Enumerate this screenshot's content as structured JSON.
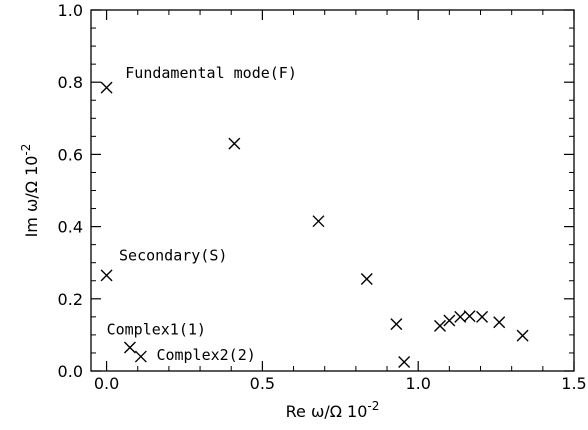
{
  "chart_data": {
    "type": "scatter",
    "xlabel": "Re ω/Ω 10⁻²",
    "ylabel": "Im ω/Ω 10⁻²",
    "xlim": [
      -0.05,
      1.5
    ],
    "ylim": [
      0.0,
      1.0
    ],
    "x_ticks": [
      0.0,
      0.5,
      1.0,
      1.5
    ],
    "x_tick_labels": [
      "0.0",
      "0.5",
      "1.0",
      "1.5"
    ],
    "y_ticks": [
      0.0,
      0.2,
      0.4,
      0.6,
      0.8,
      1.0
    ],
    "y_tick_labels": [
      "0.0",
      "0.2",
      "0.4",
      "0.6",
      "0.8",
      "1.0"
    ],
    "grid": false,
    "marker": "x",
    "color": "#000000",
    "points": [
      {
        "x": 0.0,
        "y": 0.785
      },
      {
        "x": 0.0,
        "y": 0.265
      },
      {
        "x": 0.075,
        "y": 0.065
      },
      {
        "x": 0.11,
        "y": 0.04
      },
      {
        "x": 0.41,
        "y": 0.63
      },
      {
        "x": 0.68,
        "y": 0.415
      },
      {
        "x": 0.835,
        "y": 0.255
      },
      {
        "x": 0.93,
        "y": 0.13
      },
      {
        "x": 0.955,
        "y": 0.025
      },
      {
        "x": 1.07,
        "y": 0.125
      },
      {
        "x": 1.1,
        "y": 0.14
      },
      {
        "x": 1.135,
        "y": 0.15
      },
      {
        "x": 1.165,
        "y": 0.152
      },
      {
        "x": 1.205,
        "y": 0.15
      },
      {
        "x": 1.26,
        "y": 0.135
      },
      {
        "x": 1.335,
        "y": 0.098
      }
    ],
    "annotations": [
      {
        "text": "Fundamental mode(F)",
        "x": 0.06,
        "y": 0.825
      },
      {
        "text": "Secondary(S)",
        "x": 0.04,
        "y": 0.32
      },
      {
        "text": "Complex1(1)",
        "x": 0.0,
        "y": 0.115
      },
      {
        "text": "Complex2(2)",
        "x": 0.16,
        "y": 0.045
      }
    ]
  }
}
